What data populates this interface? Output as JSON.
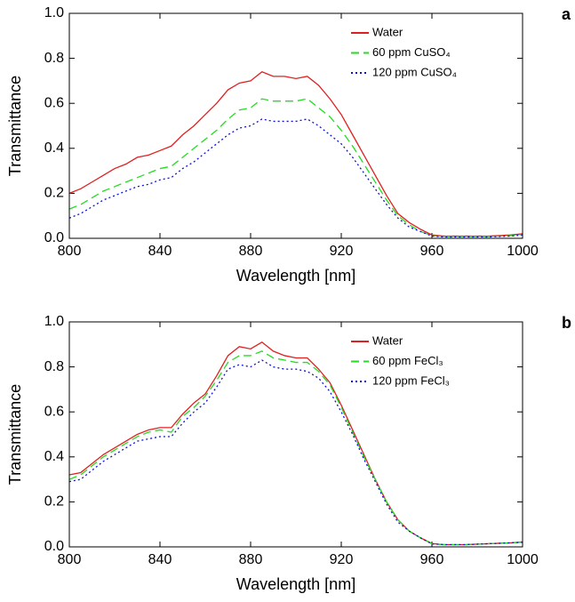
{
  "chart_data": [
    {
      "type": "line",
      "label": "a",
      "xlabel": "Wavelength [nm]",
      "ylabel": "Transmittance",
      "xlim": [
        800,
        1000
      ],
      "xticks": [
        800,
        840,
        880,
        920,
        960,
        1000
      ],
      "ylim": [
        0,
        1
      ],
      "yticks": [
        {
          "value": 0,
          "label": "0.0"
        },
        0.2,
        0.4,
        0.6,
        0.8,
        {
          "value": 1,
          "label": "1.0"
        }
      ],
      "legend": "upper right",
      "x": [
        800,
        805,
        810,
        815,
        820,
        825,
        830,
        835,
        840,
        845,
        850,
        855,
        860,
        865,
        870,
        875,
        880,
        885,
        890,
        895,
        900,
        905,
        910,
        915,
        920,
        925,
        930,
        935,
        940,
        945,
        950,
        955,
        960,
        965,
        970,
        975,
        980,
        985,
        990,
        995,
        1000
      ],
      "series": [
        {
          "name": "Water",
          "color": "#e02020",
          "linestyle": "solid",
          "values": [
            0.2,
            0.22,
            0.25,
            0.28,
            0.31,
            0.33,
            0.36,
            0.37,
            0.39,
            0.41,
            0.46,
            0.5,
            0.55,
            0.6,
            0.66,
            0.69,
            0.7,
            0.74,
            0.72,
            0.72,
            0.71,
            0.72,
            0.68,
            0.62,
            0.55,
            0.46,
            0.37,
            0.28,
            0.19,
            0.11,
            0.07,
            0.04,
            0.015,
            0.01,
            0.01,
            0.01,
            0.01,
            0.01,
            0.012,
            0.015,
            0.02
          ]
        },
        {
          "name": "60 ppm CuSO₄",
          "color": "#22dd22",
          "linestyle": "dashed",
          "values": [
            0.13,
            0.15,
            0.18,
            0.21,
            0.23,
            0.25,
            0.27,
            0.29,
            0.31,
            0.32,
            0.36,
            0.4,
            0.44,
            0.48,
            0.53,
            0.57,
            0.58,
            0.62,
            0.61,
            0.61,
            0.61,
            0.62,
            0.58,
            0.54,
            0.48,
            0.41,
            0.33,
            0.25,
            0.17,
            0.1,
            0.06,
            0.03,
            0.012,
            0.008,
            0.008,
            0.008,
            0.008,
            0.008,
            0.01,
            0.012,
            0.017
          ]
        },
        {
          "name": "120 ppm CuSO₄",
          "color": "#1010d0",
          "linestyle": "dotted",
          "values": [
            0.09,
            0.11,
            0.14,
            0.17,
            0.19,
            0.21,
            0.23,
            0.24,
            0.26,
            0.27,
            0.31,
            0.34,
            0.38,
            0.42,
            0.46,
            0.49,
            0.5,
            0.53,
            0.52,
            0.52,
            0.52,
            0.53,
            0.5,
            0.46,
            0.42,
            0.36,
            0.29,
            0.22,
            0.15,
            0.09,
            0.05,
            0.03,
            0.01,
            0.006,
            0.006,
            0.006,
            0.006,
            0.006,
            0.008,
            0.01,
            0.015
          ]
        }
      ]
    },
    {
      "type": "line",
      "label": "b",
      "xlabel": "Wavelength [nm]",
      "ylabel": "Transmittance",
      "xlim": [
        800,
        1000
      ],
      "xticks": [
        800,
        840,
        880,
        920,
        960,
        1000
      ],
      "ylim": [
        0,
        1
      ],
      "yticks": [
        {
          "value": 0,
          "label": "0.0"
        },
        0.2,
        0.4,
        0.6,
        0.8,
        {
          "value": 1,
          "label": "1.0"
        }
      ],
      "legend": "upper right",
      "x": [
        800,
        805,
        810,
        815,
        820,
        825,
        830,
        835,
        840,
        845,
        850,
        855,
        860,
        865,
        870,
        875,
        880,
        885,
        890,
        895,
        900,
        905,
        910,
        915,
        920,
        925,
        930,
        935,
        940,
        945,
        950,
        955,
        960,
        965,
        970,
        975,
        980,
        985,
        990,
        995,
        1000
      ],
      "series": [
        {
          "name": "Water",
          "color": "#e02020",
          "linestyle": "solid",
          "values": [
            0.32,
            0.33,
            0.37,
            0.41,
            0.44,
            0.47,
            0.5,
            0.52,
            0.53,
            0.53,
            0.59,
            0.64,
            0.68,
            0.76,
            0.85,
            0.89,
            0.88,
            0.91,
            0.87,
            0.85,
            0.84,
            0.84,
            0.79,
            0.73,
            0.63,
            0.52,
            0.41,
            0.3,
            0.2,
            0.12,
            0.07,
            0.04,
            0.015,
            0.01,
            0.01,
            0.01,
            0.012,
            0.014,
            0.016,
            0.018,
            0.022
          ]
        },
        {
          "name": "60 ppm FeCl₃",
          "color": "#22dd22",
          "linestyle": "dashed",
          "values": [
            0.3,
            0.32,
            0.36,
            0.4,
            0.43,
            0.46,
            0.49,
            0.51,
            0.52,
            0.51,
            0.58,
            0.62,
            0.67,
            0.74,
            0.82,
            0.85,
            0.85,
            0.87,
            0.84,
            0.83,
            0.82,
            0.82,
            0.78,
            0.72,
            0.62,
            0.51,
            0.4,
            0.3,
            0.2,
            0.12,
            0.07,
            0.04,
            0.014,
            0.01,
            0.01,
            0.01,
            0.012,
            0.014,
            0.016,
            0.018,
            0.021
          ]
        },
        {
          "name": "120 ppm FeCl₃",
          "color": "#1010d0",
          "linestyle": "dotted",
          "values": [
            0.29,
            0.3,
            0.34,
            0.38,
            0.41,
            0.44,
            0.47,
            0.48,
            0.49,
            0.49,
            0.55,
            0.6,
            0.64,
            0.71,
            0.79,
            0.81,
            0.8,
            0.83,
            0.8,
            0.79,
            0.79,
            0.78,
            0.75,
            0.69,
            0.6,
            0.5,
            0.39,
            0.29,
            0.19,
            0.11,
            0.07,
            0.04,
            0.013,
            0.01,
            0.01,
            0.01,
            0.012,
            0.014,
            0.016,
            0.018,
            0.02
          ]
        }
      ]
    }
  ]
}
